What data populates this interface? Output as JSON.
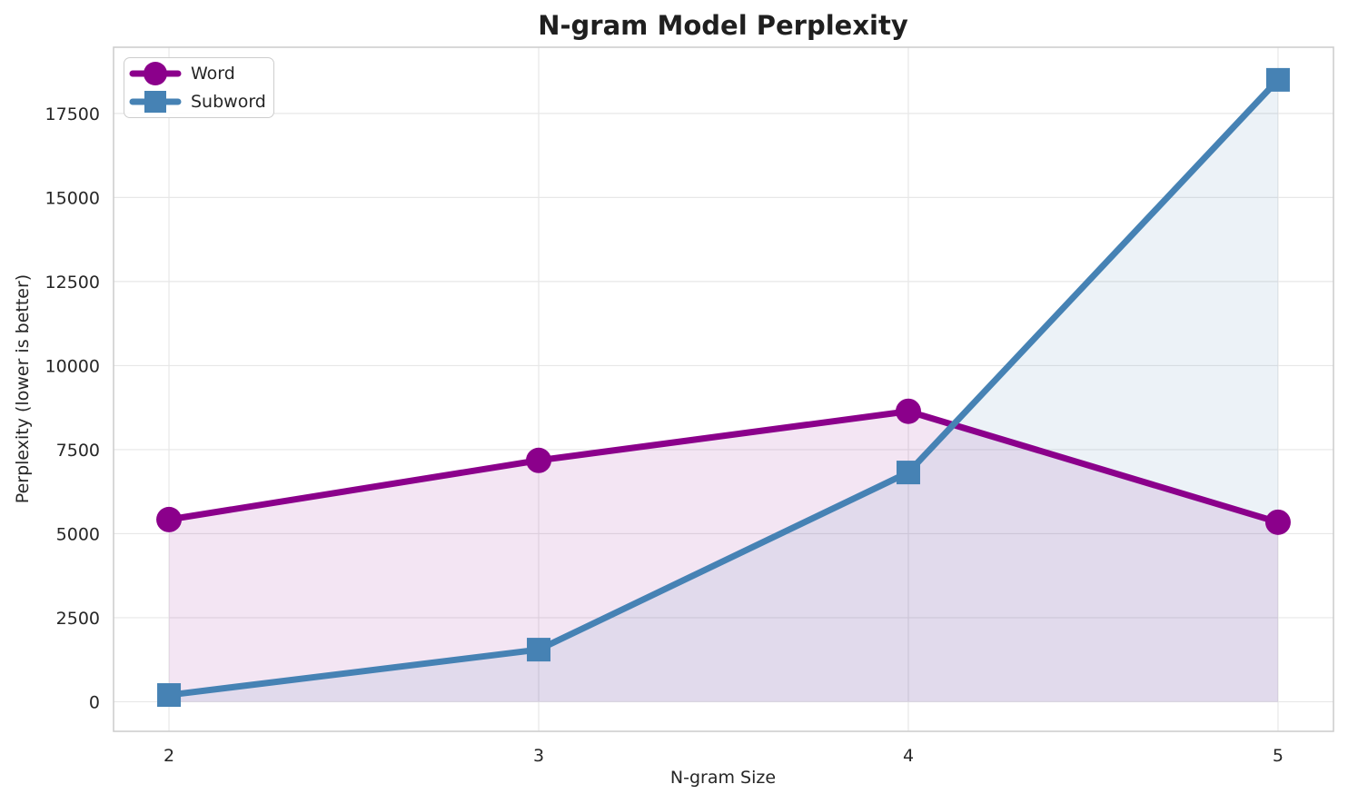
{
  "chart_data": {
    "type": "line",
    "title": "N-gram Model Perplexity",
    "xlabel": "N-gram Size",
    "ylabel": "Perplexity (lower is better)",
    "x": [
      2,
      3,
      4,
      5
    ],
    "series": [
      {
        "name": "Word",
        "color": "#8B008B",
        "marker": "circle",
        "fill": true,
        "values": [
          5420,
          7180,
          8640,
          5340
        ]
      },
      {
        "name": "Subword",
        "color": "#4682B4",
        "marker": "square",
        "fill": true,
        "values": [
          200,
          1550,
          6820,
          18500
        ]
      }
    ],
    "x_ticks": [
      2,
      3,
      4,
      5
    ],
    "y_ticks": [
      0,
      2500,
      5000,
      7500,
      10000,
      12500,
      15000,
      17500
    ],
    "xlim": [
      1.85,
      5.15
    ],
    "ylim": [
      -880,
      19470
    ],
    "grid": true,
    "legend_position": "upper-left",
    "fill_alpha": 0.1,
    "fill_baseline": 0,
    "colors": {
      "grid": "#e7e7e7",
      "spine": "#cccccc",
      "text": "#262626",
      "title": "#1f1f1f",
      "background": "#ffffff"
    }
  }
}
